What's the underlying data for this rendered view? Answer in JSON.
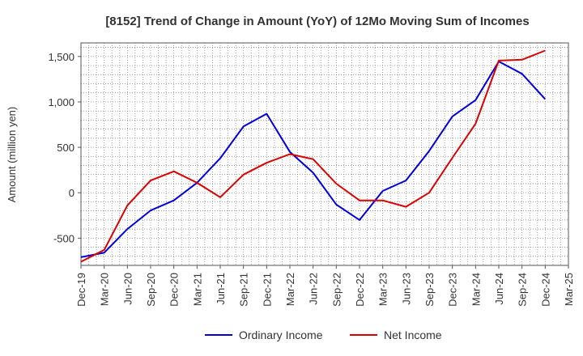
{
  "chart_data": {
    "type": "line",
    "title": "[8152]  Trend of Change in Amount (YoY) of 12Mo Moving Sum of Incomes",
    "xlabel": "",
    "ylabel": "Amount (million yen)",
    "categories": [
      "Dec-19",
      "Mar-20",
      "Jun-20",
      "Sep-20",
      "Dec-20",
      "Mar-21",
      "Jun-21",
      "Sep-21",
      "Dec-21",
      "Mar-22",
      "Jun-22",
      "Sep-22",
      "Dec-22",
      "Mar-23",
      "Jun-23",
      "Sep-23",
      "Dec-23",
      "Mar-24",
      "Jun-24",
      "Sep-24",
      "Dec-24",
      "Mar-25"
    ],
    "ylim": [
      -800,
      1650
    ],
    "yticks": [
      -500,
      0,
      500,
      1000,
      1500
    ],
    "ytick_labels": [
      "-500",
      "0",
      "500",
      "1,000",
      "1,500"
    ],
    "grid": true,
    "legend_position": "bottom",
    "series": [
      {
        "name": "Ordinary Income",
        "color": "#0000dd",
        "values": [
          -710,
          -660,
          -400,
          -195,
          -85,
          110,
          380,
          730,
          870,
          450,
          220,
          -130,
          -300,
          20,
          135,
          460,
          840,
          1020,
          1445,
          1310,
          1030,
          null
        ]
      },
      {
        "name": "Net Income",
        "color": "#dd0000",
        "values": [
          -760,
          -630,
          -140,
          135,
          235,
          110,
          -50,
          200,
          330,
          425,
          370,
          100,
          -85,
          -85,
          -155,
          0,
          385,
          760,
          1455,
          1465,
          1565,
          null
        ]
      }
    ]
  }
}
